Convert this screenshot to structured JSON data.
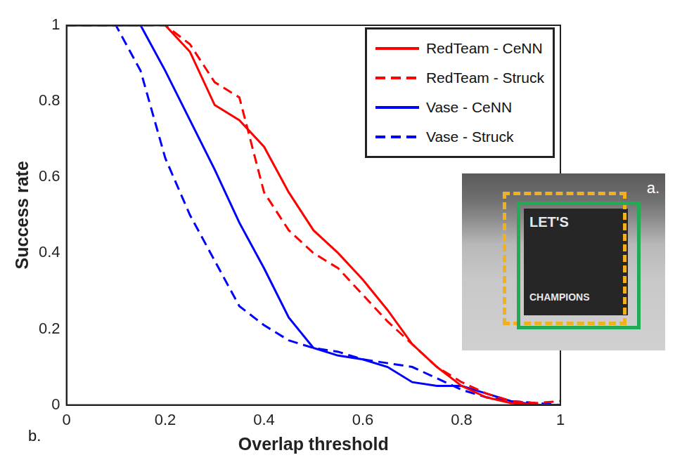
{
  "chart_data": {
    "type": "line",
    "x_label": "Overlap threshold",
    "y_label": "Success rate",
    "x": [
      0,
      0.05,
      0.1,
      0.15,
      0.2,
      0.25,
      0.3,
      0.35,
      0.4,
      0.45,
      0.5,
      0.55,
      0.6,
      0.65,
      0.7,
      0.75,
      0.8,
      0.85,
      0.9,
      0.95,
      1
    ],
    "series": [
      {
        "name": "RedTeam - CeNN",
        "color": "#ff0000",
        "line_style": "solid",
        "values": [
          1,
          1,
          1,
          1,
          1,
          0.93,
          0.79,
          0.75,
          0.68,
          0.56,
          0.46,
          0.4,
          0.33,
          0.25,
          0.16,
          0.1,
          0.05,
          0.02,
          0.005,
          0,
          0
        ]
      },
      {
        "name": "RedTeam - Struck",
        "color": "#ff0000",
        "line_style": "dashed",
        "values": [
          1,
          1,
          1,
          1,
          1,
          0.95,
          0.85,
          0.81,
          0.56,
          0.46,
          0.4,
          0.36,
          0.29,
          0.22,
          0.16,
          0.1,
          0.06,
          0.03,
          0.01,
          0.005,
          0.01
        ]
      },
      {
        "name": "Vase - CeNN",
        "color": "#0000ff",
        "line_style": "solid",
        "values": [
          1,
          1,
          1,
          1,
          0.88,
          0.75,
          0.62,
          0.48,
          0.36,
          0.23,
          0.15,
          0.13,
          0.12,
          0.1,
          0.06,
          0.05,
          0.05,
          0.03,
          0.01,
          0,
          0
        ]
      },
      {
        "name": "Vase - Struck",
        "color": "#0000ff",
        "line_style": "dashed",
        "values": [
          1,
          1,
          1,
          0.88,
          0.65,
          0.5,
          0.38,
          0.26,
          0.21,
          0.17,
          0.15,
          0.14,
          0.12,
          0.11,
          0.1,
          0.07,
          0.04,
          0.02,
          0.01,
          0.005,
          0
        ]
      }
    ],
    "xlim": [
      0,
      1
    ],
    "xticks": [
      0,
      0.2,
      0.4,
      0.6,
      0.8,
      1
    ],
    "ylim": [
      0,
      1
    ],
    "yticks": [
      0,
      0.2,
      0.4,
      0.6,
      0.8,
      1
    ],
    "grid": false,
    "legend": "upper right",
    "panel_label": "b.",
    "inset": {
      "label": "a.",
      "texts": [
        "LET'S",
        "CHAMPIONS"
      ]
    }
  }
}
